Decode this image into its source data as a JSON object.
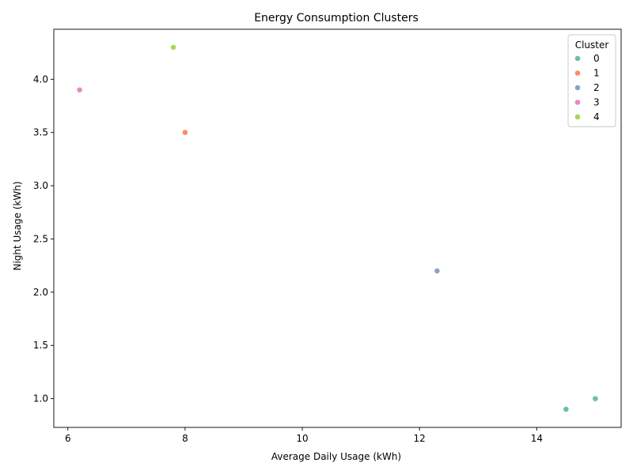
{
  "chart_data": {
    "type": "scatter",
    "title": "Energy Consumption Clusters",
    "xlabel": "Average Daily Usage (kWh)",
    "ylabel": "Night Usage (kWh)",
    "xlim": [
      5.76,
      15.44
    ],
    "ylim": [
      0.73,
      4.47
    ],
    "xticks": [
      6,
      8,
      10,
      12,
      14
    ],
    "yticks": [
      1.0,
      1.5,
      2.0,
      2.5,
      3.0,
      3.5,
      4.0
    ],
    "xtick_labels": [
      "6",
      "8",
      "10",
      "12",
      "14"
    ],
    "ytick_labels": [
      "1.0",
      "1.5",
      "2.0",
      "2.5",
      "3.0",
      "3.5",
      "4.0"
    ],
    "grid": false,
    "legend": {
      "title": "Cluster",
      "placement": "top-right",
      "entries": [
        "0",
        "1",
        "2",
        "3",
        "4"
      ]
    },
    "colors": [
      "#66c2a5",
      "#fc8d62",
      "#8da0cb",
      "#e78ac3",
      "#a6d854"
    ],
    "series": [
      {
        "name": "0",
        "points": [
          {
            "x": 14.5,
            "y": 0.9
          },
          {
            "x": 15.0,
            "y": 1.0
          }
        ]
      },
      {
        "name": "1",
        "points": [
          {
            "x": 8.0,
            "y": 3.5
          }
        ]
      },
      {
        "name": "2",
        "points": [
          {
            "x": 12.3,
            "y": 2.2
          }
        ]
      },
      {
        "name": "3",
        "points": [
          {
            "x": 6.2,
            "y": 3.9
          }
        ]
      },
      {
        "name": "4",
        "points": [
          {
            "x": 7.8,
            "y": 4.3
          }
        ]
      }
    ]
  }
}
